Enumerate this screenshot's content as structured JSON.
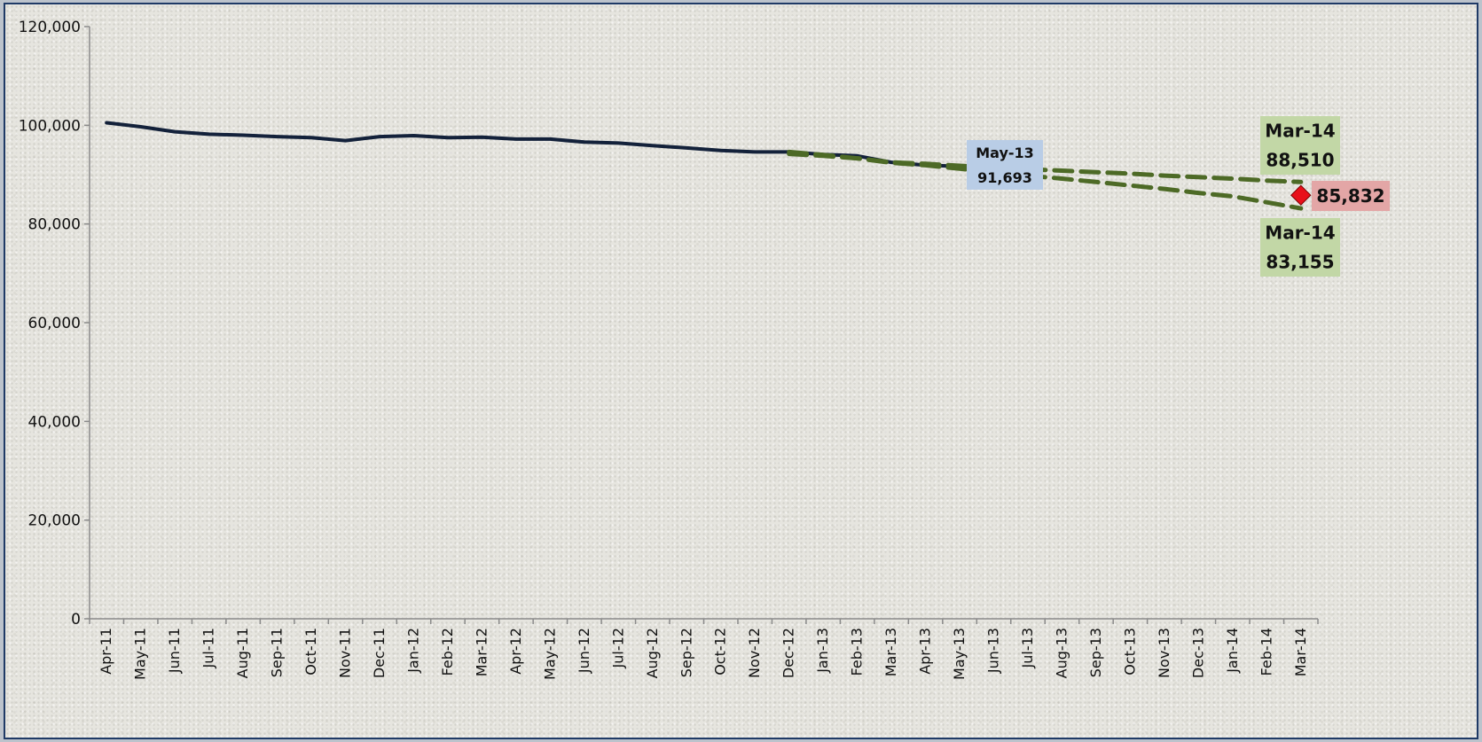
{
  "chart_data": {
    "type": "line",
    "title": "",
    "xlabel": "",
    "ylabel": "",
    "ylim": [
      0,
      120000
    ],
    "y_ticks": [
      0,
      20000,
      40000,
      60000,
      80000,
      100000,
      120000
    ],
    "y_tick_labels": [
      "0",
      "20,000",
      "40,000",
      "60,000",
      "80,000",
      "100,000",
      "120,000"
    ],
    "categories": [
      "Apr-11",
      "May-11",
      "Jun-11",
      "Jul-11",
      "Aug-11",
      "Sep-11",
      "Oct-11",
      "Nov-11",
      "Dec-11",
      "Jan-12",
      "Feb-12",
      "Mar-12",
      "Apr-12",
      "May-12",
      "Jun-12",
      "Jul-12",
      "Aug-12",
      "Sep-12",
      "Oct-12",
      "Nov-12",
      "Dec-12",
      "Jan-13",
      "Feb-13",
      "Mar-13",
      "Apr-13",
      "May-13",
      "Jun-13",
      "Jul-13",
      "Aug-13",
      "Sep-13",
      "Oct-13",
      "Nov-13",
      "Dec-13",
      "Jan-14",
      "Feb-14",
      "Mar-14"
    ],
    "grid": false,
    "legend": "none",
    "series": [
      {
        "style": "solid",
        "color": "#13213a",
        "values": [
          100500,
          99700,
          98700,
          98200,
          98000,
          97700,
          97500,
          96900,
          97700,
          97900,
          97500,
          97600,
          97200,
          97200,
          96600,
          96400,
          95900,
          95400,
          94900,
          94600,
          94600,
          94100,
          93800,
          92500,
          91900,
          91693,
          null,
          null,
          null,
          null,
          null,
          null,
          null,
          null,
          null,
          null
        ]
      },
      {
        "style": "dashed",
        "color": "#4d6a26",
        "values": [
          null,
          null,
          null,
          null,
          null,
          null,
          null,
          null,
          null,
          null,
          null,
          null,
          null,
          null,
          null,
          null,
          null,
          null,
          null,
          null,
          94600,
          94000,
          93300,
          92500,
          92200,
          91800,
          91400,
          91100,
          90800,
          90500,
          90200,
          89800,
          89500,
          89200,
          88800,
          88510
        ]
      },
      {
        "style": "dashed",
        "color": "#4d6a26",
        "values": [
          null,
          null,
          null,
          null,
          null,
          null,
          null,
          null,
          null,
          null,
          null,
          null,
          null,
          null,
          null,
          null,
          null,
          null,
          null,
          null,
          94200,
          93800,
          93300,
          92400,
          91900,
          91200,
          90500,
          89800,
          89200,
          88500,
          87800,
          87100,
          86300,
          85600,
          84400,
          83155
        ]
      }
    ],
    "markers": [
      {
        "category": "Mar-14",
        "value": 85832,
        "shape": "diamond",
        "color": "#e8101a"
      }
    ],
    "annotations": [
      {
        "id": "may13",
        "lines": [
          "May-13",
          "91,693"
        ],
        "color": "#b9cde6"
      },
      {
        "id": "mar14_high",
        "lines": [
          "Mar-14",
          "88,510"
        ],
        "color": "#c2d7a6"
      },
      {
        "id": "mar14_low",
        "lines": [
          "Mar-14",
          "83,155"
        ],
        "color": "#c2d7a6"
      },
      {
        "id": "mar14_point",
        "lines": [
          "85,832"
        ],
        "color": "#e3a6a6"
      }
    ]
  }
}
